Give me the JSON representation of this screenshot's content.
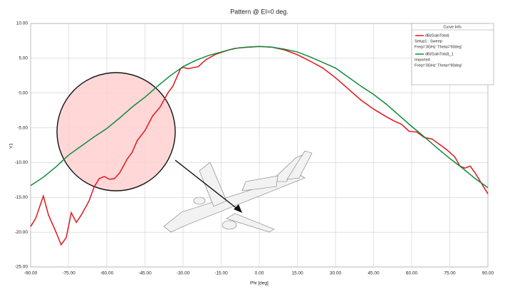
{
  "chart_data": {
    "type": "line",
    "title": "Pattern @ El=0 deg.",
    "xlabel": "Phi [deg]",
    "ylabel": "Y1",
    "legend_title": "Curve Info",
    "legend": "upper right",
    "grid": true,
    "xlim": [
      -90,
      90
    ],
    "ylim": [
      -25,
      10
    ],
    "xticks": [
      {
        "value": -90,
        "label": "-90.00"
      },
      {
        "value": -75,
        "label": "-75.00"
      },
      {
        "value": -60,
        "label": "-60.00"
      },
      {
        "value": -45,
        "label": "-45.00"
      },
      {
        "value": -30,
        "label": "-30.00"
      },
      {
        "value": -15,
        "label": "-15.00"
      },
      {
        "value": 0,
        "label": "0.00"
      },
      {
        "value": 15,
        "label": "15.00"
      },
      {
        "value": 30,
        "label": "30.00"
      },
      {
        "value": 45,
        "label": "45.00"
      },
      {
        "value": 60,
        "label": "60.00"
      },
      {
        "value": 75,
        "label": "75.00"
      },
      {
        "value": 90,
        "label": "90.00"
      }
    ],
    "yticks": [
      {
        "value": 10,
        "label": "10.00"
      },
      {
        "value": 5,
        "label": "5.00"
      },
      {
        "value": 0,
        "label": "0.00"
      },
      {
        "value": -5,
        "label": "-5.00"
      },
      {
        "value": -10,
        "label": "-10.00"
      },
      {
        "value": -15,
        "label": "-15.00"
      },
      {
        "value": -20,
        "label": "-20.00"
      },
      {
        "value": -25,
        "label": "-25.00"
      }
    ],
    "series": [
      {
        "name": "dB(GainTotal)",
        "setup": "Setup1 : Sweep",
        "variables": "Freq='3GHz' Theta='90deg'",
        "color": "#e0161e",
        "x": [
          -90,
          -88,
          -85,
          -83,
          -80,
          -78,
          -76,
          -74,
          -72,
          -70,
          -67,
          -65,
          -63,
          -61,
          -59,
          -57,
          -55,
          -52,
          -50,
          -48,
          -45,
          -42,
          -39,
          -36,
          -34,
          -31,
          -30,
          -28,
          -24,
          -21,
          -17,
          -12,
          -8,
          -4,
          0,
          5,
          10,
          15,
          20,
          25,
          30,
          35,
          40,
          45,
          50,
          53,
          56,
          59,
          62,
          65,
          68,
          71,
          74,
          77,
          79,
          81,
          83,
          85,
          88,
          90
        ],
        "values": [
          -19.2,
          -18,
          -14.8,
          -17.5,
          -20,
          -21.8,
          -20.8,
          -17.2,
          -18.6,
          -17.5,
          -15.5,
          -13.5,
          -12.3,
          -12,
          -12.4,
          -12.3,
          -11.5,
          -9.5,
          -8.5,
          -6.8,
          -5.4,
          -3.3,
          -2,
          0,
          1,
          3.5,
          3.7,
          3.5,
          3.8,
          4.8,
          5.6,
          6.2,
          6.5,
          6.6,
          6.7,
          6.6,
          6.2,
          5.5,
          4.6,
          3.6,
          2.2,
          0.6,
          -1,
          -2.3,
          -3.4,
          -4,
          -4.5,
          -5.5,
          -5.6,
          -6.4,
          -6.6,
          -7.4,
          -8.2,
          -9.2,
          -10.5,
          -10.8,
          -10.5,
          -11.5,
          -13.3,
          -14.5
        ]
      },
      {
        "name": "dB(GainTotal)_1",
        "setup": "Imported",
        "variables": "Freq='3GHz' Theta='90deg'",
        "color": "#0f8a3c",
        "x": [
          -90,
          -85,
          -80,
          -75,
          -70,
          -65,
          -60,
          -55,
          -50,
          -45,
          -40,
          -35,
          -30,
          -25,
          -20,
          -15,
          -10,
          -5,
          0,
          5,
          10,
          15,
          20,
          25,
          30,
          35,
          40,
          45,
          50,
          55,
          60,
          65,
          70,
          75,
          80,
          85,
          90
        ],
        "values": [
          -13.3,
          -12.1,
          -10.6,
          -8.9,
          -7.6,
          -6.3,
          -5.1,
          -3.6,
          -2,
          -0.6,
          1,
          2.5,
          3.8,
          4.7,
          5.4,
          5.9,
          6.4,
          6.6,
          6.7,
          6.6,
          6.3,
          5.9,
          5.2,
          4.4,
          3.6,
          2.3,
          1,
          -0.2,
          -1.6,
          -3.2,
          -4.8,
          -6.3,
          -7.9,
          -9.4,
          -10.8,
          -12.3,
          -13.6
        ]
      }
    ]
  }
}
